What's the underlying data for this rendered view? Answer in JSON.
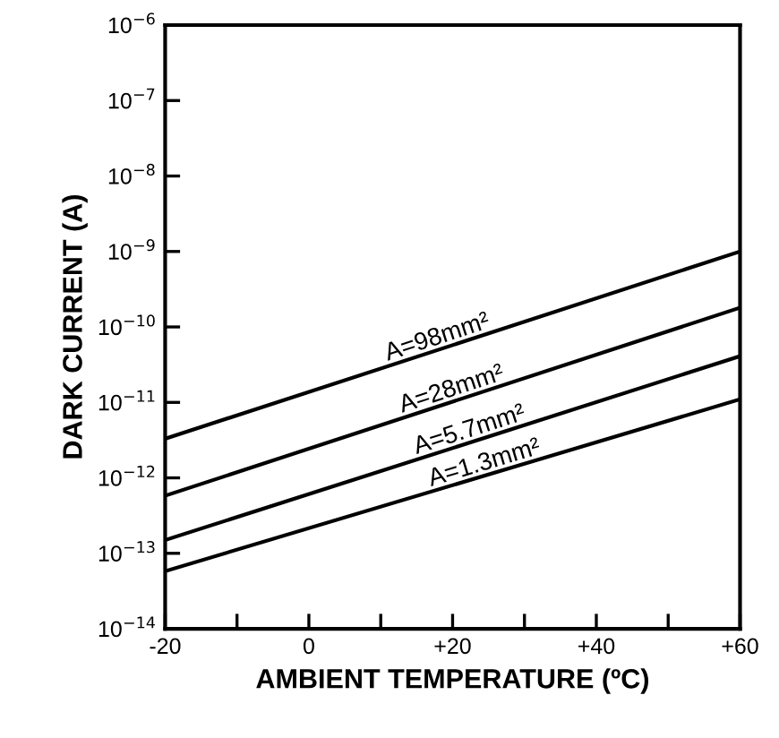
{
  "chart_data": {
    "type": "line",
    "xlabel": "AMBIENT TEMPERATURE (ºC)",
    "ylabel": "DARK CURRENT (A)",
    "log": "y",
    "grid": false,
    "legend": false,
    "marker": "none",
    "line_style": "solid",
    "xlim": [
      -20,
      60
    ],
    "xticks": [
      -20,
      {
        "value": -10,
        "label": null
      },
      0,
      {
        "value": 10,
        "label": null
      },
      {
        "value": 20,
        "label": "+20"
      },
      {
        "value": 30,
        "label": null
      },
      {
        "value": 40,
        "label": "+40"
      },
      {
        "value": 50,
        "label": null
      },
      {
        "value": 60,
        "label": "+60"
      }
    ],
    "ylim": [
      1e-14,
      1e-06
    ],
    "yticks": [
      {
        "value": 1e-14,
        "label": "10$^{−14}$"
      },
      {
        "value": 1e-13,
        "label": "10$^{−13}$"
      },
      {
        "value": 1e-12,
        "label": "10$^{−12}$"
      },
      {
        "value": 1e-11,
        "label": "10$^{−11}$"
      },
      {
        "value": 1e-10,
        "label": "10$^{−10}$"
      },
      {
        "value": 1e-09,
        "label": "10$^{−9}$"
      },
      {
        "value": 1e-08,
        "label": "10$^{−8}$"
      },
      {
        "value": 1e-07,
        "label": "10$^{−7}$"
      },
      {
        "value": 1e-06,
        "label": "10$^{−6}$"
      }
    ],
    "x": [
      -20,
      60
    ],
    "series": [
      {
        "name": "A=98mm²",
        "color": "#000000",
        "values": [
          3.3e-12,
          1e-09
        ]
      },
      {
        "name": "A=28mm²",
        "color": "#000000",
        "values": [
          5.8e-13,
          1.8e-10
        ]
      },
      {
        "name": "A=5.7mm²",
        "color": "#000000",
        "values": [
          1.5e-13,
          4.1e-11
        ]
      },
      {
        "name": "A=1.3mm²",
        "color": "#000000",
        "values": [
          5.8e-14,
          1.1e-11
        ]
      }
    ]
  }
}
